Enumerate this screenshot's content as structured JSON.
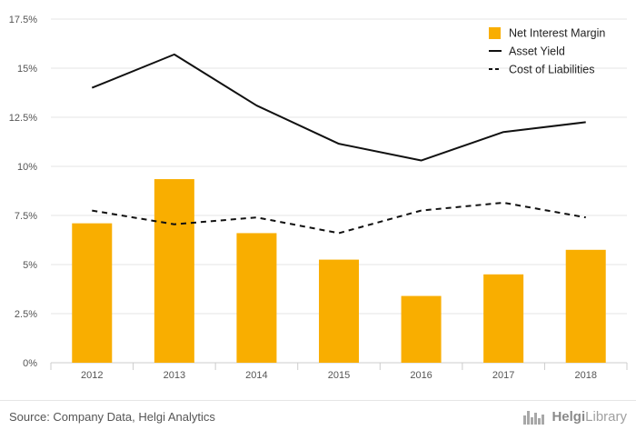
{
  "chart_data": {
    "type": "bar",
    "categories": [
      "2012",
      "2013",
      "2014",
      "2015",
      "2016",
      "2017",
      "2018"
    ],
    "series": [
      {
        "name": "Net Interest Margin",
        "type": "bar",
        "color": "#F9AE00",
        "values": [
          7.1,
          9.35,
          6.6,
          5.25,
          3.4,
          4.5,
          5.75
        ]
      },
      {
        "name": "Asset Yield",
        "type": "line",
        "style": "solid",
        "color": "#111111",
        "values": [
          14.0,
          15.7,
          13.1,
          11.15,
          10.3,
          11.75,
          12.25
        ]
      },
      {
        "name": "Cost of Liabilities",
        "type": "line",
        "style": "dashed",
        "color": "#111111",
        "values": [
          7.75,
          7.05,
          7.4,
          6.6,
          7.75,
          8.15,
          7.4
        ]
      }
    ],
    "ylim": [
      0,
      17.5
    ],
    "yticks": [
      0,
      2.5,
      5,
      7.5,
      10,
      12.5,
      15,
      17.5
    ],
    "ytick_labels": [
      "0%",
      "2.5%",
      "5%",
      "7.5%",
      "10%",
      "12.5%",
      "15%",
      "17.5%"
    ],
    "grid": true,
    "legend_position": "top-right"
  },
  "footer": {
    "source": "Source: Company Data, Helgi Analytics",
    "brand_bold": "Helgi",
    "brand_light": "Library"
  },
  "colors": {
    "bar": "#F9AE00",
    "line": "#111111",
    "grid": "#e6e6e6"
  }
}
